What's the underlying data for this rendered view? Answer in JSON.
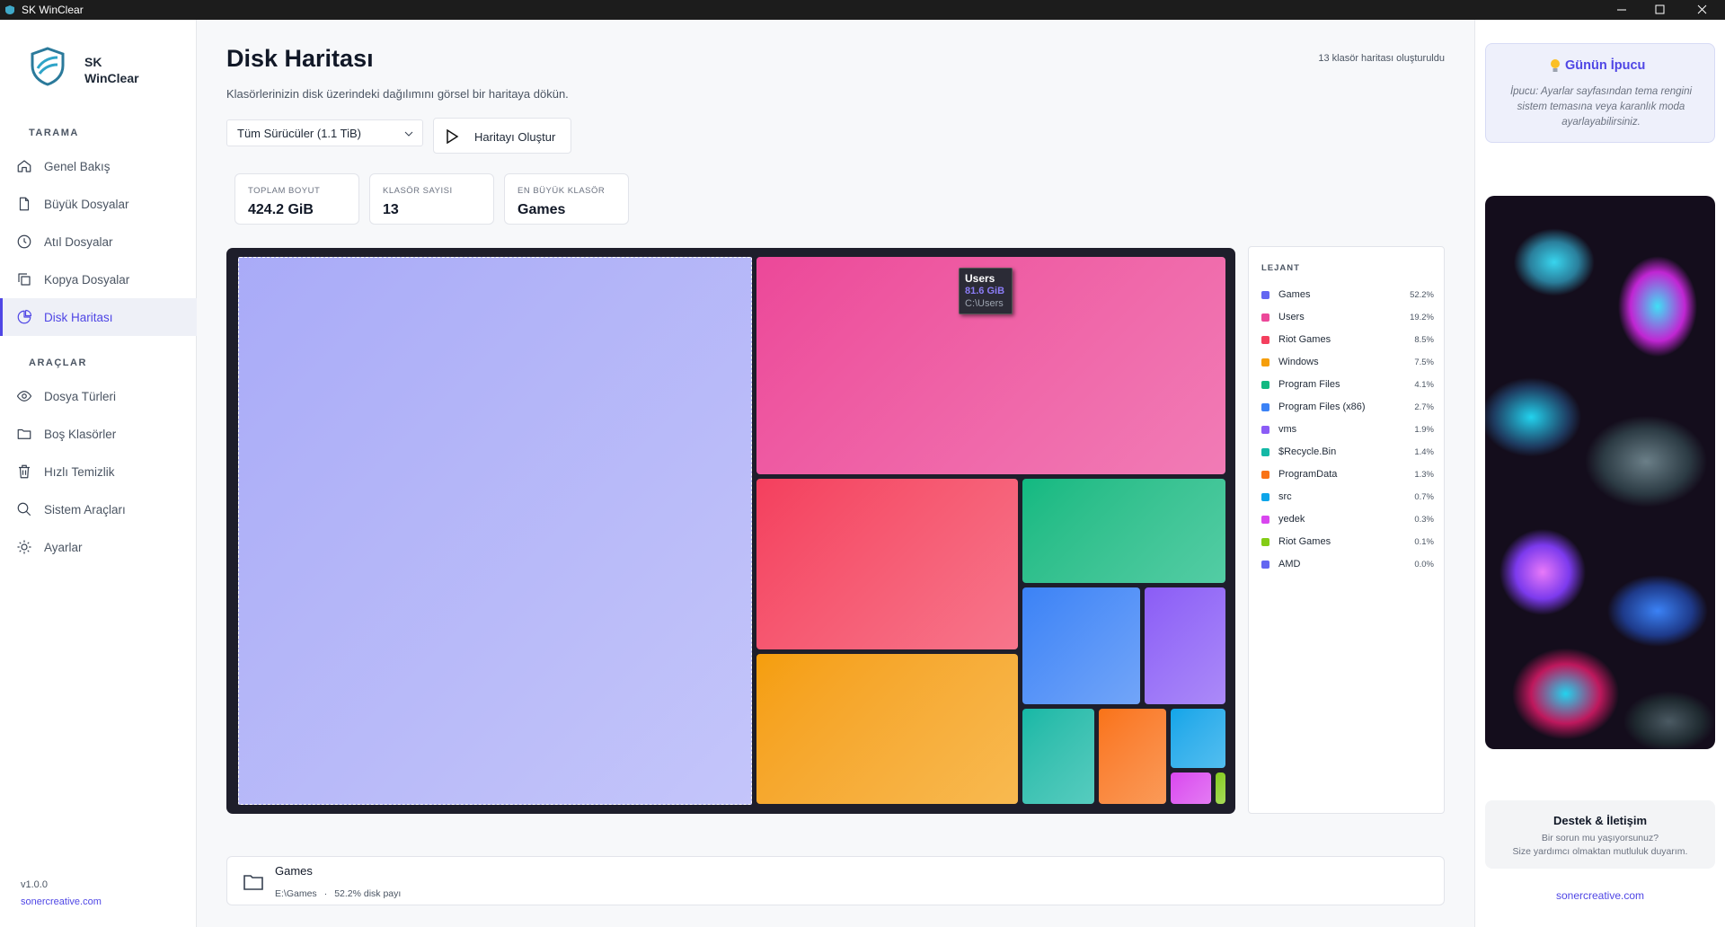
{
  "window": {
    "title": "SK WinClear"
  },
  "sidebar": {
    "brand": {
      "line1": "SK",
      "line2": "WinClear"
    },
    "sections": [
      {
        "title": "TARAMA",
        "items": [
          "Genel Bakış",
          "Büyük Dosyalar",
          "Atıl Dosyalar",
          "Kopya Dosyalar",
          "Disk Haritası"
        ]
      },
      {
        "title": "ARAÇLAR",
        "items": [
          "Dosya Türleri",
          "Boş Klasörler",
          "Hızlı Temizlik",
          "Sistem Araçları",
          "Ayarlar"
        ]
      }
    ],
    "active": {
      "section": 0,
      "item": 4
    },
    "version": "v1.0.0",
    "link": "sonercreative.com"
  },
  "header": {
    "title": "Disk Haritası",
    "subtitle": "Klasörlerinizin disk üzerindeki dağılımını görsel bir haritaya dökün.",
    "status": "13 klasör haritası oluşturuldu"
  },
  "controls": {
    "drive": "Tüm Sürücüler (1.1 TiB)",
    "button": "Haritayı Oluştur"
  },
  "stats": [
    {
      "label": "TOPLAM BOYUT",
      "value": "424.2 GiB"
    },
    {
      "label": "KLASÖR SAYISI",
      "value": "13"
    },
    {
      "label": "EN BÜYÜK KLASÖR",
      "value": "Games"
    }
  ],
  "treemap": {
    "selected": 0,
    "tooltip": {
      "name": "Users",
      "size": "81.6 GiB",
      "path": "C:\\Users"
    },
    "legend_title": "LEJANT",
    "items": [
      {
        "name": "Games",
        "percent": 52.2,
        "percent_label": "52.2%",
        "color": "#6366f1"
      },
      {
        "name": "Users",
        "percent": 19.2,
        "percent_label": "19.2%",
        "color": "#ec4899"
      },
      {
        "name": "Riot Games",
        "percent": 8.5,
        "percent_label": "8.5%",
        "color": "#f43f5e"
      },
      {
        "name": "Windows",
        "percent": 7.5,
        "percent_label": "7.5%",
        "color": "#f59e0b"
      },
      {
        "name": "Program Files",
        "percent": 4.1,
        "percent_label": "4.1%",
        "color": "#10b981"
      },
      {
        "name": "Program Files (x86)",
        "percent": 2.7,
        "percent_label": "2.7%",
        "color": "#3b82f6"
      },
      {
        "name": "vms",
        "percent": 1.9,
        "percent_label": "1.9%",
        "color": "#8b5cf6"
      },
      {
        "name": "$Recycle.Bin",
        "percent": 1.4,
        "percent_label": "1.4%",
        "color": "#14b8a6"
      },
      {
        "name": "ProgramData",
        "percent": 1.3,
        "percent_label": "1.3%",
        "color": "#f97316"
      },
      {
        "name": "src",
        "percent": 0.7,
        "percent_label": "0.7%",
        "color": "#0ea5e9"
      },
      {
        "name": "yedek",
        "percent": 0.3,
        "percent_label": "0.3%",
        "color": "#d946ef"
      },
      {
        "name": "Riot Games",
        "percent": 0.1,
        "percent_label": "0.1%",
        "color": "#84cc16"
      },
      {
        "name": "AMD",
        "percent": 0.0,
        "percent_label": "0.0%",
        "color": "#6366f1"
      }
    ]
  },
  "details": {
    "name": "Games",
    "path": "E:\\Games",
    "separator": "·",
    "share": "52.2% disk payı"
  },
  "tip": {
    "title": "Günün İpucu",
    "text": "İpucu: Ayarlar sayfasından tema rengini sistem temasına veya karanlık moda ayarlayabilirsiniz."
  },
  "support": {
    "title": "Destek & İletişim",
    "line1": "Bir sorun mu yaşıyorsunuz?",
    "line2": "Size yardımcı olmaktan mutluluk duyarım.",
    "link": "sonercreative.com"
  }
}
